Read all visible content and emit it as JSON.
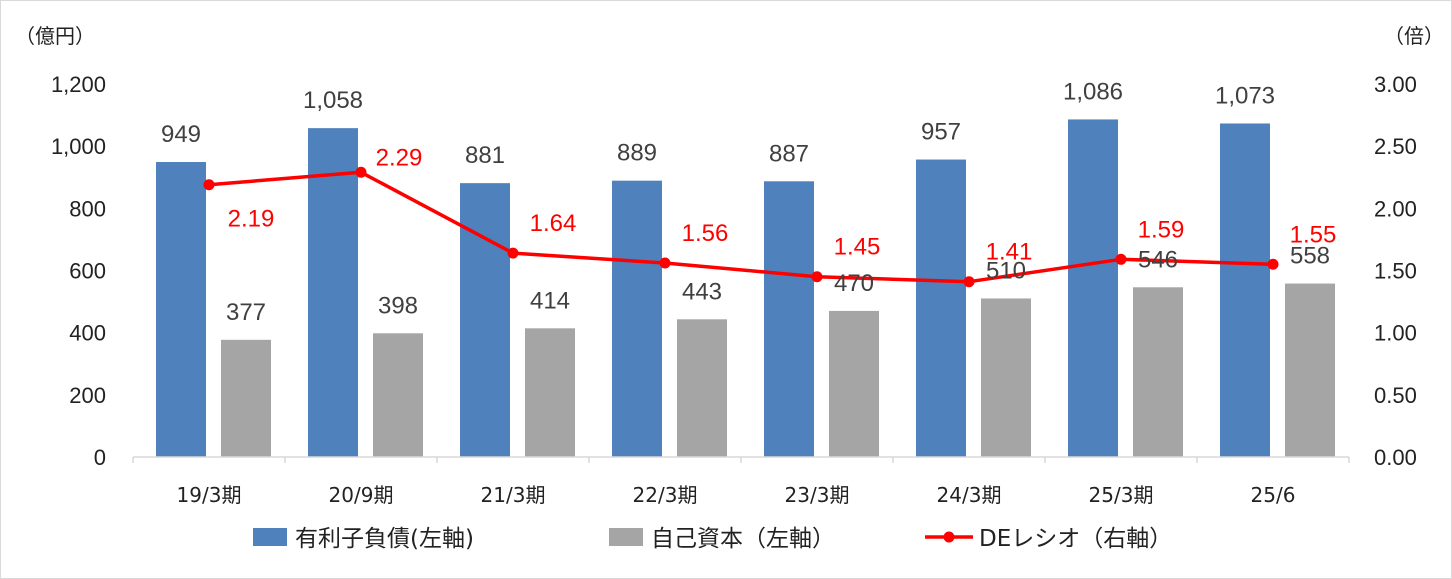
{
  "chart_data": {
    "type": "bar",
    "categories": [
      "19/3期",
      "20/9期",
      "21/3期",
      "22/3期",
      "23/3期",
      "24/3期",
      "25/3期",
      "25/6"
    ],
    "series": [
      {
        "name": "有利子負債(左軸)",
        "type": "bar",
        "axis": "left",
        "color": "#4f81bd",
        "values": [
          949,
          1058,
          881,
          889,
          887,
          957,
          1086,
          1073
        ],
        "labels": [
          "949",
          "1,058",
          "881",
          "889",
          "887",
          "957",
          "1,086",
          "1,073"
        ]
      },
      {
        "name": "自己資本（左軸）",
        "type": "bar",
        "axis": "left",
        "color": "#a5a5a5",
        "values": [
          377,
          398,
          414,
          443,
          470,
          510,
          546,
          558
        ],
        "labels": [
          "377",
          "398",
          "414",
          "443",
          "470",
          "510",
          "546",
          "558"
        ]
      },
      {
        "name": "DEレシオ（右軸）",
        "type": "line",
        "axis": "right",
        "color": "#ff0000",
        "values": [
          2.19,
          2.29,
          1.64,
          1.56,
          1.45,
          1.41,
          1.59,
          1.55
        ],
        "labels": [
          "2.19",
          "2.29",
          "1.64",
          "1.56",
          "1.45",
          "1.41",
          "1.59",
          "1.55"
        ]
      }
    ],
    "y_left": {
      "unit": "（億円）",
      "ylim": [
        0,
        1200
      ],
      "ticks": [
        "0",
        "200",
        "400",
        "600",
        "800",
        "1,000",
        "1,200"
      ]
    },
    "y_right": {
      "unit": "（倍）",
      "ylim": [
        0,
        3
      ],
      "ticks": [
        "0.00",
        "0.50",
        "1.00",
        "1.50",
        "2.00",
        "2.50",
        "3.00"
      ]
    },
    "grid": false,
    "legend_position": "bottom"
  }
}
